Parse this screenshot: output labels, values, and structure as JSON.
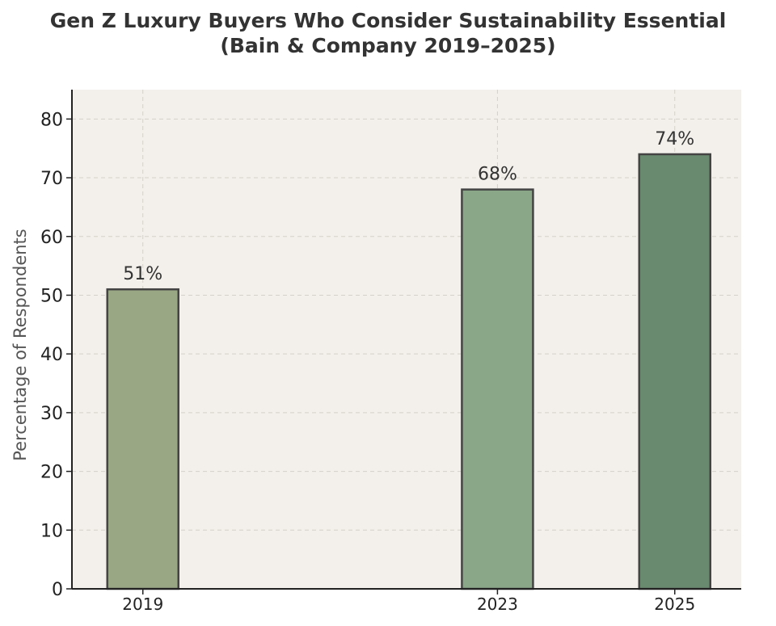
{
  "chart_data": {
    "type": "bar",
    "title": "Gen Z Luxury Buyers Who Consider Sustainability Essential",
    "subtitle": "(Bain & Company 2019–2025)",
    "xlabel": "",
    "ylabel": "Percentage of Respondents",
    "x": [
      2019,
      2023,
      2025
    ],
    "categories": [
      "2019",
      "2023",
      "2025"
    ],
    "values": [
      51,
      68,
      74
    ],
    "data_labels": [
      "51%",
      "68%",
      "74%"
    ],
    "xlim": [
      2018.2,
      2025.75
    ],
    "ylim": [
      0,
      85
    ],
    "yticks": [
      0,
      10,
      20,
      30,
      40,
      50,
      60,
      70,
      80
    ],
    "bar_colors": [
      "#9aa784",
      "#8aa787",
      "#6a8a70"
    ],
    "edge_color": "#444444",
    "background_color": "#f3f0eb",
    "grid": true
  }
}
